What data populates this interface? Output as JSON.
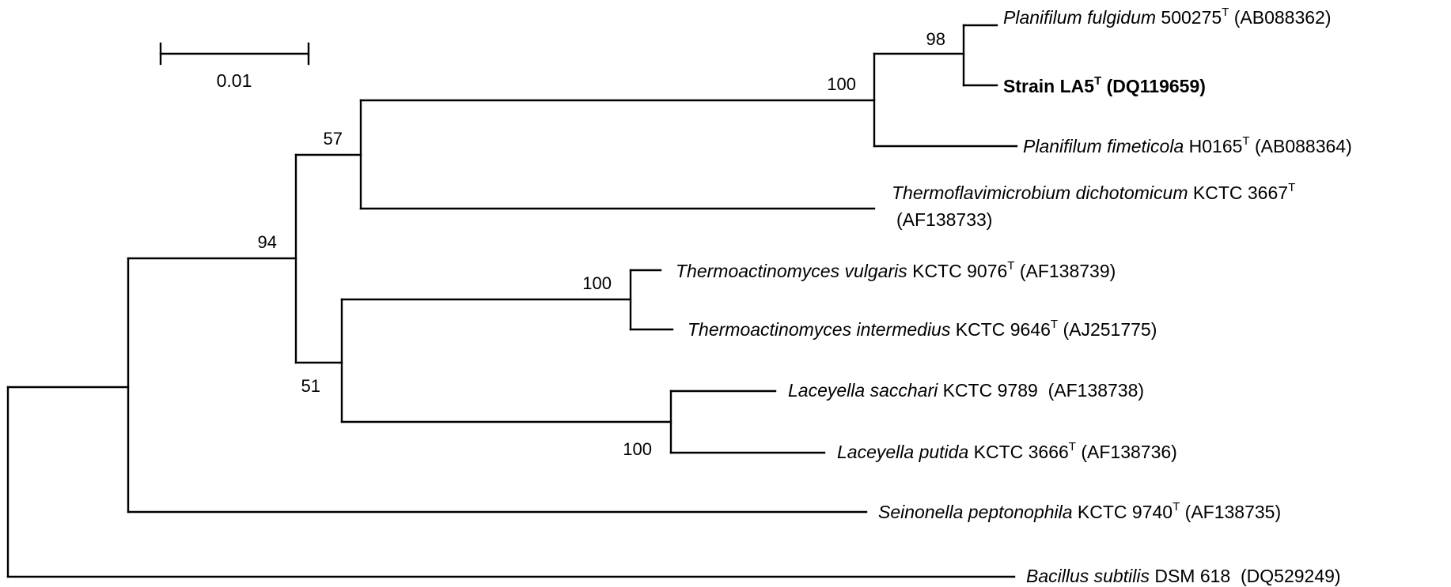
{
  "scale_bar": {
    "label": "0.01"
  },
  "bootstrap": {
    "b98": "98",
    "b100_planifilum": "100",
    "b57": "57",
    "b94": "94",
    "b51": "51",
    "b100_thermoactinomyces": "100",
    "b100_laceyella": "100"
  },
  "taxa": {
    "planifilum_fulgidum": {
      "species": "Planifilum fulgidum",
      "strain": " 500275",
      "type": "T",
      "accession": " (AB088362)"
    },
    "strain_la5": {
      "strain": "Strain LA5",
      "type": "T",
      "accession": " (DQ119659)"
    },
    "planifilum_fimeticola": {
      "species": "Planifilum fimeticola",
      "strain": " H0165",
      "type": "T",
      "accession": " (AB088364)"
    },
    "thermoflavimicrobium": {
      "species": "Thermoflavimicrobium dichotomicum",
      "strain": " KCTC 3667",
      "type": "T",
      "accession": "(AF138733)"
    },
    "thermoactinomyces_vulgaris": {
      "species": "Thermoactinomyces vulgaris",
      "strain": " KCTC 9076",
      "type": "T",
      "accession": " (AF138739)"
    },
    "thermoactinomyces_intermedius": {
      "species": "Thermoactinomyces intermedius",
      "strain": " KCTC 9646",
      "type": "T",
      "accession": " (AJ251775)"
    },
    "laceyella_sacchari": {
      "species": "Laceyella sacchari",
      "strain": " KCTC 9789  ",
      "accession": "(AF138738)"
    },
    "laceyella_putida": {
      "species": "Laceyella putida",
      "strain": " KCTC 3666",
      "type": "T",
      "accession": " (AF138736)"
    },
    "seinonella": {
      "species": "Seinonella peptonophila",
      "strain": " KCTC 9740",
      "type": "T",
      "accession": " (AF138735)"
    },
    "bacillus": {
      "species": "Bacillus subtilis",
      "strain": " DSM 618  ",
      "accession": "(DQ529249)"
    }
  }
}
